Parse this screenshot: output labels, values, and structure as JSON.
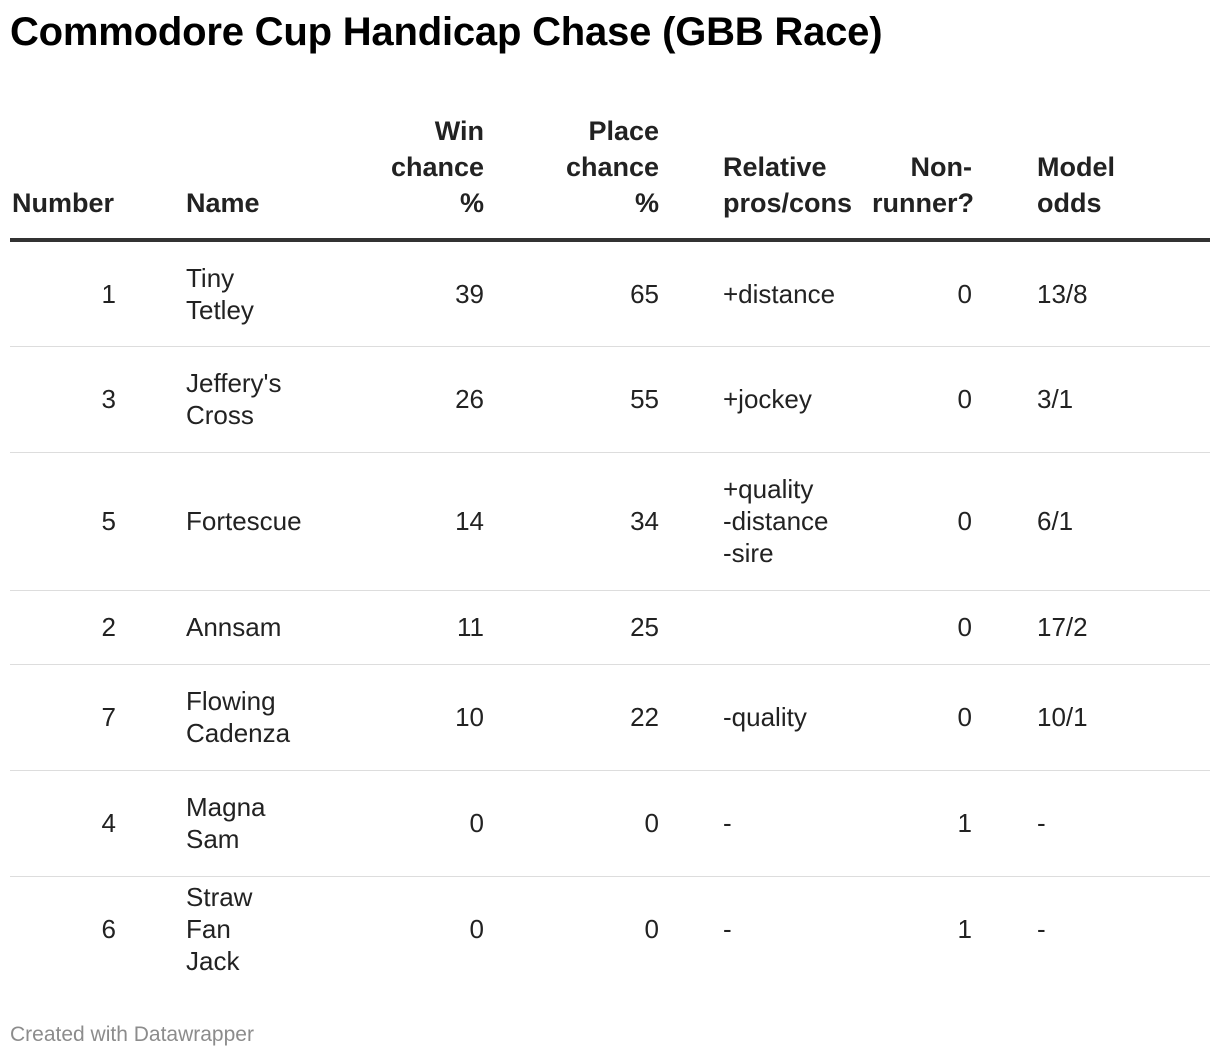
{
  "title": "Commodore Cup Handicap Chase (GBB Race)",
  "footer": "Created with Datawrapper",
  "colors": {
    "text": "#222222",
    "header_rule": "#333333",
    "row_rule": "#dddddd",
    "footer": "#8c8c8c"
  },
  "chart_data": {
    "type": "table",
    "columns": [
      "Number",
      "Name",
      "Win\nchance\n%",
      "Place\nchance\n%",
      "Relative\npros/cons",
      "Non-\nrunner?",
      "Model\nodds"
    ],
    "rows": [
      [
        "1",
        "Tiny\nTetley",
        "39",
        "65",
        "+distance",
        "0",
        "13/8"
      ],
      [
        "3",
        "Jeffery's\nCross",
        "26",
        "55",
        "+jockey",
        "0",
        "3/1"
      ],
      [
        "5",
        "Fortescue",
        "14",
        "34",
        "+quality\n-distance\n-sire",
        "0",
        "6/1"
      ],
      [
        "2",
        "Annsam",
        "11",
        "25",
        "",
        "0",
        "17/2"
      ],
      [
        "7",
        "Flowing\nCadenza",
        "10",
        "22",
        "-quality",
        "0",
        "10/1"
      ],
      [
        "4",
        "Magna\nSam",
        "0",
        "0",
        "-",
        "1",
        "-"
      ],
      [
        "6",
        "Straw Fan\nJack",
        "0",
        "0",
        "-",
        "1",
        "-"
      ]
    ]
  }
}
